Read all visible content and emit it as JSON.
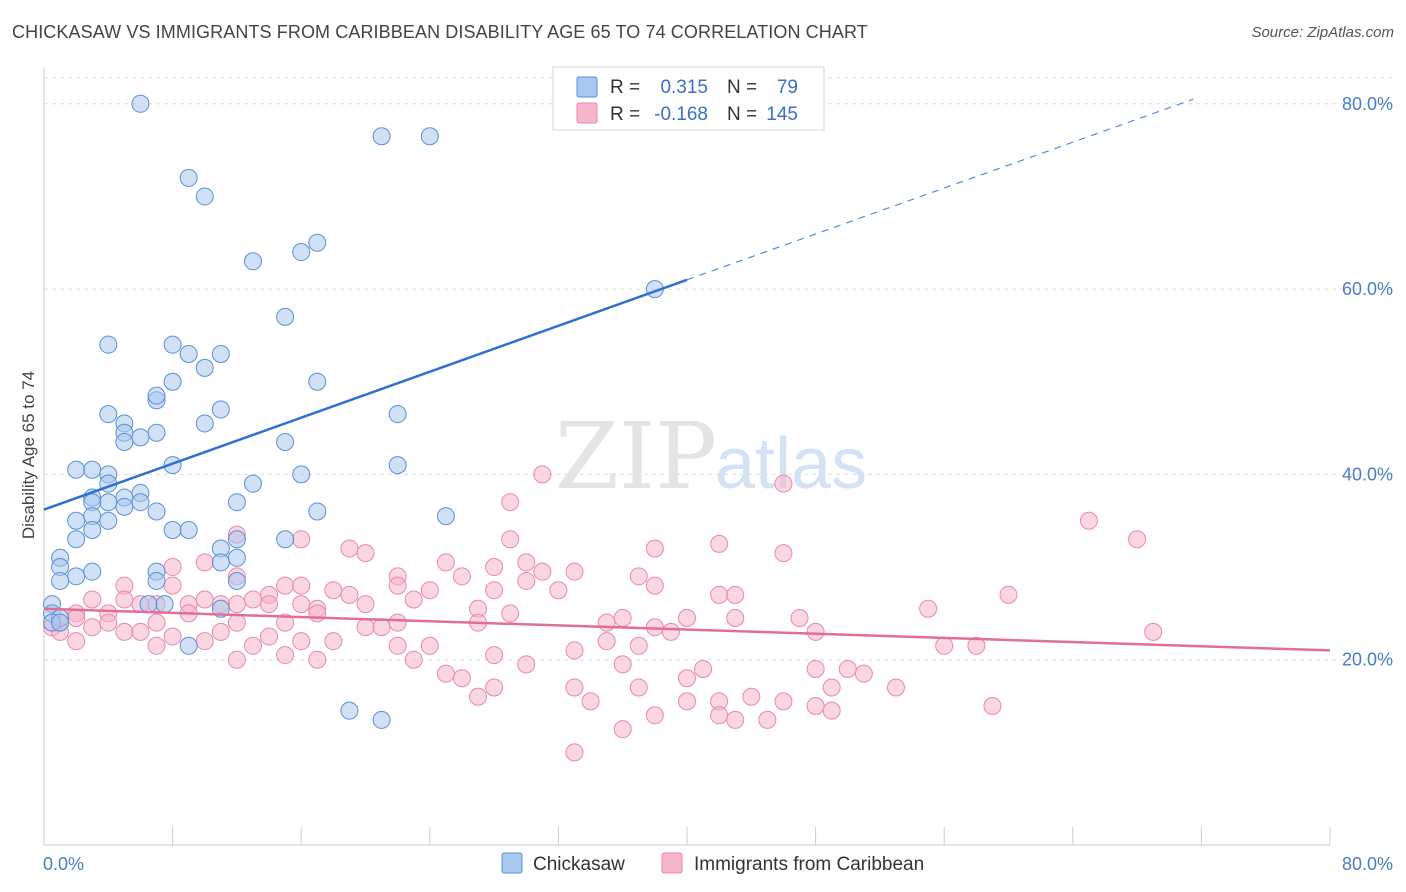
{
  "header": {
    "title": "CHICKASAW VS IMMIGRANTS FROM CARIBBEAN DISABILITY AGE 65 TO 74 CORRELATION CHART",
    "source": "Source: ZipAtlas.com"
  },
  "watermark": {
    "zip": "ZIP",
    "atlas": "atlas"
  },
  "colors": {
    "blue_fill": "#a9c8ef",
    "blue_stroke": "#5b8fd6",
    "blue_line": "#2e6fd0",
    "pink_fill": "#f6b5cb",
    "pink_stroke": "#e88aaa",
    "pink_line": "#e36d98",
    "grid": "#dddddd",
    "axis_label": "#4a7cc9"
  },
  "legend": {
    "r_label": "R =",
    "n_label": "N =",
    "rows": [
      {
        "r": "0.315",
        "n": "79"
      },
      {
        "r": "-0.168",
        "n": "145"
      }
    ]
  },
  "chart_data": {
    "type": "scatter",
    "title": "CHICKASAW VS IMMIGRANTS FROM CARIBBEAN DISABILITY AGE 65 TO 74 CORRELATION CHART",
    "xlabel": "",
    "ylabel": "Disability Age 65 to 74",
    "xlim": [
      0,
      80
    ],
    "ylim": [
      0,
      83
    ],
    "x_tick_labels": [
      "0.0%",
      "80.0%"
    ],
    "y_tick_labels": [
      "20.0%",
      "40.0%",
      "60.0%",
      "80.0%"
    ],
    "y_ticks": [
      20,
      40,
      60,
      80
    ],
    "grid": true,
    "legend_position": "top-center",
    "series": [
      {
        "name": "Chickasaw",
        "r": 0.315,
        "n": 79,
        "trend": {
          "x0": 0,
          "y0": 36.2,
          "x1": 40,
          "y1": 61,
          "dashed_to_x": 71.5,
          "dashed_to_y": 80.5
        },
        "points": [
          [
            6,
            80
          ],
          [
            21,
            76.5
          ],
          [
            24,
            76.5
          ],
          [
            9,
            72
          ],
          [
            10,
            70
          ],
          [
            17,
            65
          ],
          [
            16,
            64
          ],
          [
            13,
            63
          ],
          [
            38,
            60
          ],
          [
            15,
            57
          ],
          [
            4,
            54
          ],
          [
            8,
            54
          ],
          [
            9,
            53
          ],
          [
            11,
            53
          ],
          [
            10,
            51.5
          ],
          [
            8,
            50
          ],
          [
            17,
            50
          ],
          [
            7,
            48
          ],
          [
            7,
            48.5
          ],
          [
            11,
            47
          ],
          [
            4,
            46.5
          ],
          [
            22,
            46.5
          ],
          [
            5,
            45.5
          ],
          [
            10,
            45.5
          ],
          [
            5,
            44.5
          ],
          [
            7,
            44.5
          ],
          [
            6,
            44
          ],
          [
            5,
            43.5
          ],
          [
            15,
            43.5
          ],
          [
            8,
            41
          ],
          [
            2,
            40.5
          ],
          [
            3,
            40.5
          ],
          [
            4,
            40
          ],
          [
            16,
            40
          ],
          [
            4,
            39
          ],
          [
            13,
            39
          ],
          [
            6,
            38
          ],
          [
            3,
            37.5
          ],
          [
            5,
            37.5
          ],
          [
            4,
            37
          ],
          [
            6,
            37
          ],
          [
            3,
            37
          ],
          [
            12,
            37
          ],
          [
            5,
            36.5
          ],
          [
            7,
            36
          ],
          [
            3,
            35.5
          ],
          [
            17,
            36
          ],
          [
            25,
            35.5
          ],
          [
            4,
            35
          ],
          [
            2,
            35
          ],
          [
            3,
            34
          ],
          [
            8,
            34
          ],
          [
            9,
            34
          ],
          [
            12,
            33
          ],
          [
            15,
            33
          ],
          [
            11,
            32
          ],
          [
            2,
            33
          ],
          [
            1,
            31
          ],
          [
            12,
            31
          ],
          [
            11,
            30.5
          ],
          [
            1,
            30
          ],
          [
            3,
            29.5
          ],
          [
            7,
            29.5
          ],
          [
            2,
            29
          ],
          [
            1,
            28.5
          ],
          [
            7,
            28.5
          ],
          [
            12,
            28.5
          ],
          [
            0.5,
            26
          ],
          [
            6.5,
            26
          ],
          [
            0.5,
            25
          ],
          [
            1,
            24.5
          ],
          [
            0.5,
            24
          ],
          [
            1,
            24
          ],
          [
            7.5,
            26
          ],
          [
            11,
            25.5
          ],
          [
            9,
            21.5
          ],
          [
            19,
            14.5
          ],
          [
            21,
            13.5
          ],
          [
            22,
            41
          ]
        ]
      },
      {
        "name": "Immigrants from Caribbean",
        "r": -0.168,
        "n": 145,
        "trend": {
          "x0": 0,
          "y0": 25.5,
          "x1": 80,
          "y1": 21
        },
        "points": [
          [
            31,
            40
          ],
          [
            46,
            39
          ],
          [
            29,
            37
          ],
          [
            65,
            35
          ],
          [
            68,
            33
          ],
          [
            12,
            33.5
          ],
          [
            16,
            33
          ],
          [
            29,
            33
          ],
          [
            38,
            32
          ],
          [
            42,
            32.5
          ],
          [
            46,
            31.5
          ],
          [
            19,
            32
          ],
          [
            20,
            31.5
          ],
          [
            28,
            30
          ],
          [
            25,
            30.5
          ],
          [
            30,
            30.5
          ],
          [
            31,
            29.5
          ],
          [
            33,
            29.5
          ],
          [
            10,
            30.5
          ],
          [
            8,
            30
          ],
          [
            37,
            29
          ],
          [
            12,
            29
          ],
          [
            22,
            29
          ],
          [
            26,
            29
          ],
          [
            38,
            28
          ],
          [
            15,
            28
          ],
          [
            30,
            28.5
          ],
          [
            5,
            28
          ],
          [
            8,
            28
          ],
          [
            22,
            28
          ],
          [
            24,
            27.5
          ],
          [
            16,
            28
          ],
          [
            28,
            27.5
          ],
          [
            32,
            27.5
          ],
          [
            42,
            27
          ],
          [
            43,
            27
          ],
          [
            60,
            27
          ],
          [
            18,
            27.5
          ],
          [
            14,
            27
          ],
          [
            19,
            27
          ],
          [
            5,
            26.5
          ],
          [
            10,
            26.5
          ],
          [
            13,
            26.5
          ],
          [
            23,
            26.5
          ],
          [
            12,
            26
          ],
          [
            14,
            26
          ],
          [
            16,
            26
          ],
          [
            20,
            26
          ],
          [
            27,
            25.5
          ],
          [
            17,
            25.5
          ],
          [
            3,
            26.5
          ],
          [
            6,
            26
          ],
          [
            7,
            26
          ],
          [
            9,
            26
          ],
          [
            11,
            26
          ],
          [
            55,
            25.5
          ],
          [
            2,
            25
          ],
          [
            4,
            25
          ],
          [
            9,
            25
          ],
          [
            17,
            25
          ],
          [
            29,
            25
          ],
          [
            36,
            24.5
          ],
          [
            40,
            24.5
          ],
          [
            43,
            24.5
          ],
          [
            47,
            24.5
          ],
          [
            2,
            24.5
          ],
          [
            4,
            24
          ],
          [
            7,
            24
          ],
          [
            12,
            24
          ],
          [
            15,
            24
          ],
          [
            22,
            24
          ],
          [
            27,
            24
          ],
          [
            35,
            24
          ],
          [
            1,
            24
          ],
          [
            3,
            23.5
          ],
          [
            5,
            23
          ],
          [
            6,
            23
          ],
          [
            11,
            23
          ],
          [
            21,
            23.5
          ],
          [
            20,
            23.5
          ],
          [
            38,
            23.5
          ],
          [
            48,
            23
          ],
          [
            69,
            23
          ],
          [
            14,
            22.5
          ],
          [
            18,
            22
          ],
          [
            8,
            22.5
          ],
          [
            10,
            22
          ],
          [
            16,
            22
          ],
          [
            13,
            21.5
          ],
          [
            7,
            21.5
          ],
          [
            2,
            22
          ],
          [
            22,
            21.5
          ],
          [
            24,
            21.5
          ],
          [
            28,
            20.5
          ],
          [
            33,
            21
          ],
          [
            35,
            22
          ],
          [
            37,
            21.5
          ],
          [
            56,
            21.5
          ],
          [
            58,
            21.5
          ],
          [
            15,
            20.5
          ],
          [
            17,
            20
          ],
          [
            12,
            20
          ],
          [
            23,
            20
          ],
          [
            30,
            19.5
          ],
          [
            36,
            19.5
          ],
          [
            41,
            19
          ],
          [
            48,
            19
          ],
          [
            50,
            19
          ],
          [
            25,
            18.5
          ],
          [
            26,
            18
          ],
          [
            40,
            18
          ],
          [
            51,
            18.5
          ],
          [
            28,
            17
          ],
          [
            33,
            17
          ],
          [
            37,
            17
          ],
          [
            49,
            17
          ],
          [
            53,
            17
          ],
          [
            44,
            16
          ],
          [
            40,
            15.5
          ],
          [
            27,
            16
          ],
          [
            34,
            15.5
          ],
          [
            46,
            15.5
          ],
          [
            42,
            15.5
          ],
          [
            59,
            15
          ],
          [
            48,
            15
          ],
          [
            49,
            14.5
          ],
          [
            42,
            14
          ],
          [
            38,
            14
          ],
          [
            45,
            13.5
          ],
          [
            43,
            13.5
          ],
          [
            36,
            12.5
          ],
          [
            33,
            10
          ],
          [
            0.5,
            23.5
          ],
          [
            1,
            23
          ],
          [
            39,
            23
          ]
        ]
      }
    ]
  },
  "bottom_legend": {
    "items": [
      {
        "label": "Chickasaw"
      },
      {
        "label": "Immigrants from Caribbean"
      }
    ]
  }
}
